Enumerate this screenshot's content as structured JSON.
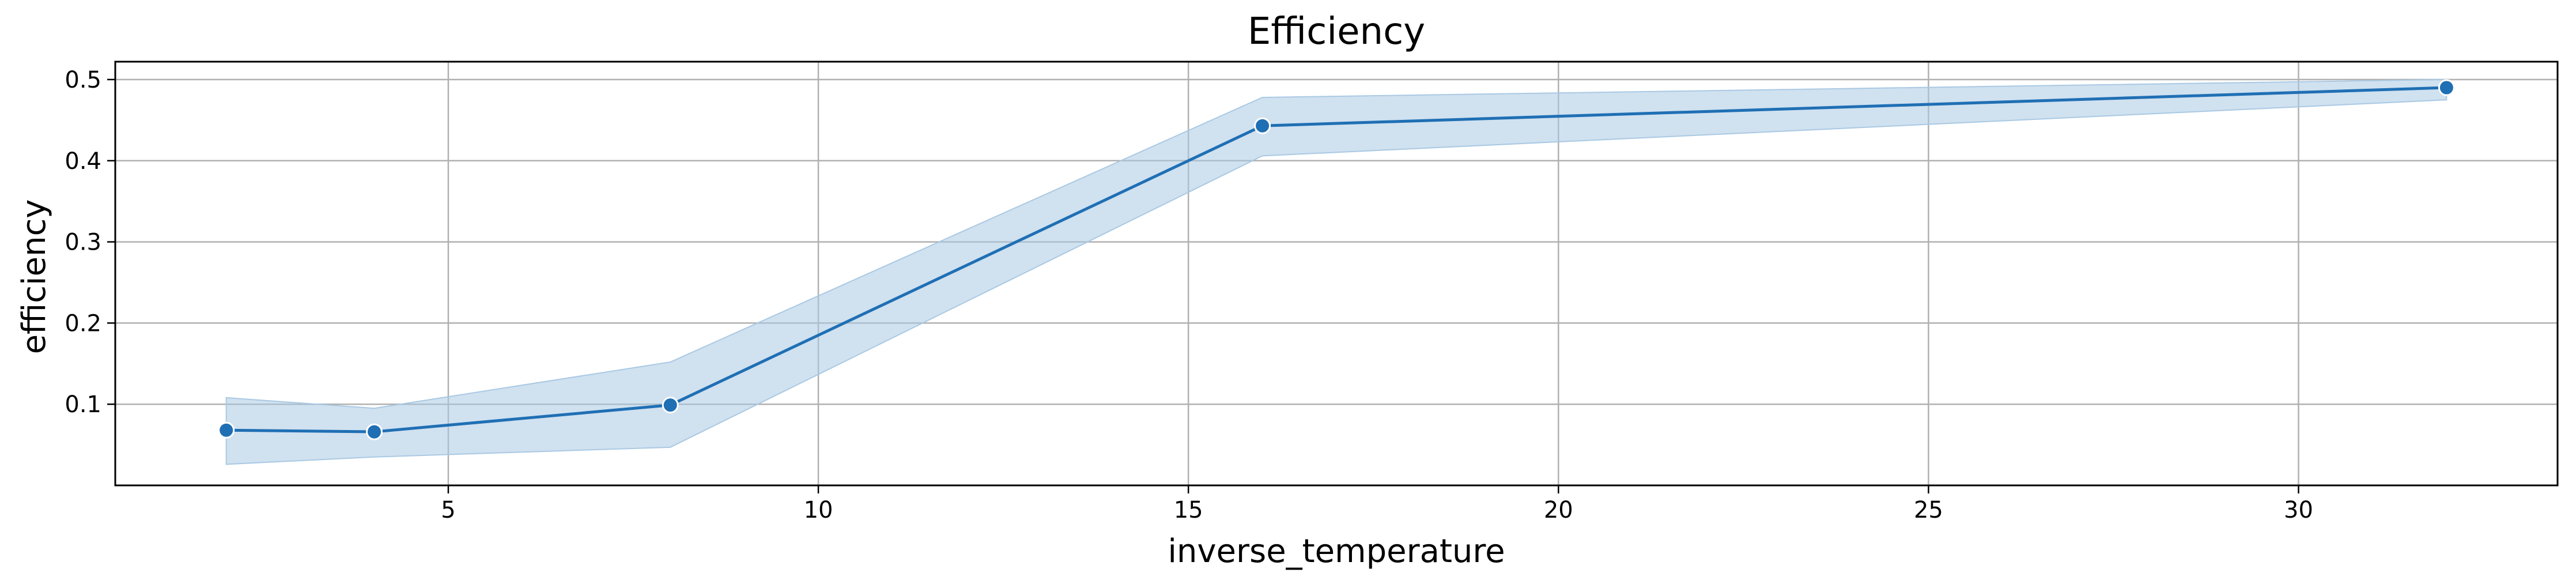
{
  "chart_data": {
    "type": "line",
    "title": "Efficiency",
    "xlabel": "inverse_temperature",
    "ylabel": "efficiency",
    "x_ticks": [
      5,
      10,
      15,
      20,
      25,
      30
    ],
    "x_tick_labels": [
      "5",
      "10",
      "15",
      "20",
      "25",
      "30"
    ],
    "y_ticks": [
      0.1,
      0.2,
      0.3,
      0.4,
      0.5
    ],
    "y_tick_labels": [
      "0.1",
      "0.2",
      "0.3",
      "0.4",
      "0.5"
    ],
    "xlim": [
      0.5,
      33.5
    ],
    "ylim": [
      0.0,
      0.522
    ],
    "grid": true,
    "legend": "none",
    "series": [
      {
        "x": [
          2,
          4,
          8,
          16,
          32
        ],
        "y": [
          0.068,
          0.066,
          0.099,
          0.443,
          0.49
        ],
        "ci_lower": [
          0.026,
          0.035,
          0.047,
          0.406,
          0.475
        ],
        "ci_upper": [
          0.108,
          0.095,
          0.152,
          0.478,
          0.5
        ],
        "color": "#1f6fb4",
        "band_color": "#a9c9e3",
        "marker": "circle"
      }
    ]
  }
}
